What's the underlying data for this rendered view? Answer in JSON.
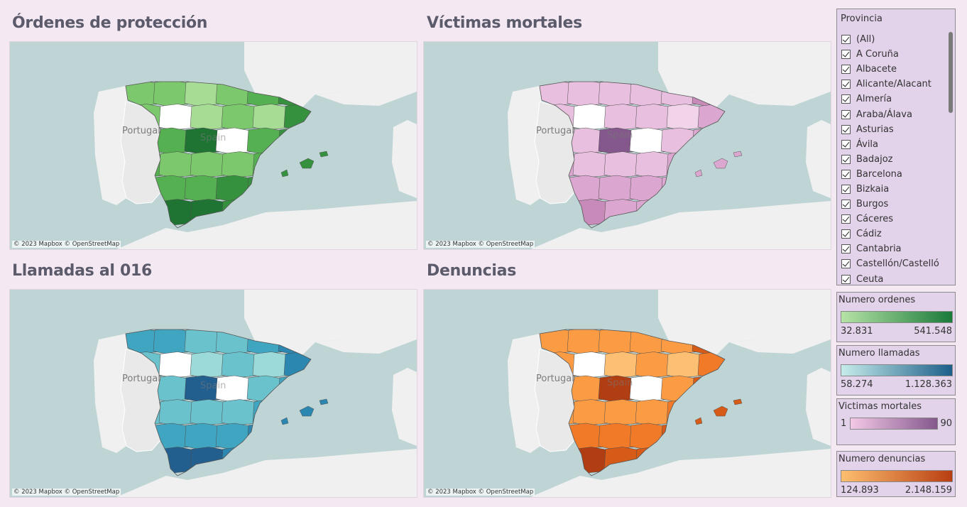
{
  "panels": [
    {
      "title": "Órdenes de protección",
      "palette": "green"
    },
    {
      "title": "Víctimas mortales",
      "palette": "pink"
    },
    {
      "title": "Llamadas al 016",
      "palette": "teal"
    },
    {
      "title": "Denuncias",
      "palette": "orange"
    }
  ],
  "map_labels": {
    "portugal": "Portugal",
    "spain": "Spain"
  },
  "attribution": "© 2023 Mapbox © OpenStreetMap",
  "filter": {
    "title": "Provincia",
    "items": [
      "(All)",
      "A Coruña",
      "Albacete",
      "Alicante/Alacant",
      "Almería",
      "Araba/Álava",
      "Asturias",
      "Ávila",
      "Badajoz",
      "Barcelona",
      "Bizkaia",
      "Burgos",
      "Cáceres",
      "Cádiz",
      "Cantabria",
      "Castellón/Castelló",
      "Ceuta"
    ]
  },
  "legends": [
    {
      "title": "Numero ordenes",
      "min": "32.831",
      "max": "541.548",
      "color_low": "#b6e3a6",
      "color_high": "#1a7a3a"
    },
    {
      "title": "Numero llamadas",
      "min": "58.274",
      "max": "1.128.363",
      "color_low": "#c6ecea",
      "color_high": "#1d5f8a"
    },
    {
      "title": "Victimas mortales",
      "min": "1",
      "max": "90",
      "color_low": "#f3c8e6",
      "color_high": "#84588c"
    },
    {
      "title": "Numero denuncias",
      "min": "124.893",
      "max": "2.148.159",
      "color_low": "#fdbf6f",
      "color_high": "#b83e12"
    }
  ],
  "colors": {
    "background": "#f4e9f3",
    "sea": "#bfd5d5",
    "land": "#f0f0f0",
    "portugal": "#e9e9e9",
    "panel": "#e2d2ea"
  }
}
